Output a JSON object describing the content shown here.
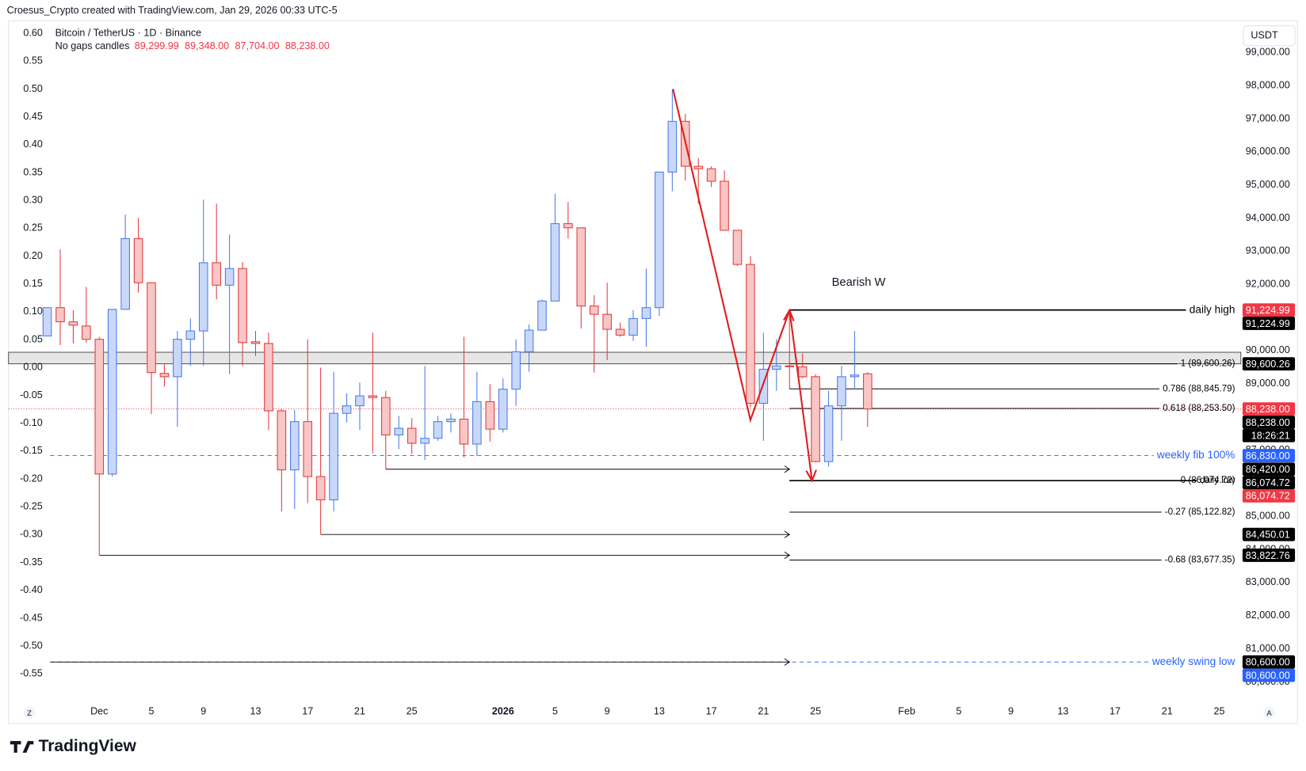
{
  "header": {
    "credit": "Croesus_Crypto created with TradingView.com, Jan 29, 2026 00:33 UTC-5",
    "brand": "TradingView"
  },
  "chart_data": {
    "type": "candlestick",
    "title": "Bitcoin / TetherUS · 1D · Binance",
    "subtitle": "No gaps candles",
    "ohlc_labels": [
      "89,299.99",
      "89,348.00",
      "87,704.00",
      "88,238.00"
    ],
    "currency": "USDT",
    "annotation": "Bearish W",
    "corner_buttons": [
      "Z",
      "A"
    ],
    "up_color": "#4a7be8",
    "up_fill": "#c9d8f8",
    "down_color": "#e23b3b",
    "down_fill": "#f8c6c6",
    "grid": false,
    "categories": [
      null,
      null,
      null,
      null,
      "Dec",
      null,
      null,
      null,
      "5",
      null,
      null,
      null,
      "9",
      null,
      null,
      null,
      "13",
      null,
      null,
      null,
      "17",
      null,
      null,
      null,
      "21",
      null,
      null,
      null,
      "25",
      null,
      null,
      null,
      null,
      null,
      null,
      "2026",
      null,
      null,
      null,
      "5",
      null,
      null,
      null,
      "9",
      null,
      null,
      null,
      "13",
      null,
      null,
      null,
      "17",
      null,
      null,
      null,
      "21",
      null,
      null,
      null,
      "25",
      null,
      null,
      null,
      null,
      null,
      null,
      "Feb",
      null,
      null,
      null,
      "5",
      null,
      null,
      null,
      "9",
      null,
      null,
      null,
      "13",
      null,
      null,
      null,
      "17",
      null,
      null,
      null,
      "21",
      null,
      null,
      null,
      "25",
      null
    ],
    "open": [
      90442,
      91296,
      90869,
      90743,
      90341,
      86274,
      91245,
      93380,
      92049,
      89312,
      89212,
      90341,
      90593,
      92652,
      91974,
      92476,
      90266,
      90216,
      88182,
      86400,
      87856,
      86198,
      85495,
      88107,
      88333,
      88634,
      88584,
      87454,
      87655,
      87203,
      87353,
      87856,
      87931,
      87178,
      88458,
      87630,
      88835,
      89965,
      90618,
      91496,
      93832,
      93706,
      91346,
      91095,
      90643,
      90467,
      90969,
      91296,
      95389,
      96920,
      95564,
      95489,
      95112,
      93631,
      92601,
      88408,
      89437,
      89538,
      89513,
      89212,
      86650,
      88333,
      89212,
      89299.99,
      null,
      null,
      null,
      null,
      null,
      null,
      null,
      null,
      null,
      null,
      null,
      null,
      null,
      null,
      null,
      null,
      null,
      null,
      null,
      null,
      null,
      null,
      null,
      null,
      null,
      null,
      null,
      null
    ],
    "high": [
      91296,
      93053,
      91220,
      91923,
      90417,
      91245,
      94108,
      94008,
      92049,
      89588,
      90593,
      90969,
      94560,
      94434,
      93505,
      92677,
      90593,
      90542,
      88232,
      88207,
      90341,
      89488,
      89362,
      88709,
      89036,
      90542,
      88785,
      88031,
      87956,
      89538,
      88031,
      88107,
      90417,
      89362,
      88985,
      89161,
      90341,
      90793,
      91547,
      94736,
      94485,
      93706,
      91672,
      92049,
      90844,
      91220,
      92476,
      95389,
      97874,
      97146,
      95815,
      95564,
      95439,
      93631,
      92852,
      90542,
      90341,
      91224.99,
      89915,
      89287,
      88785,
      89538,
      90593,
      89348,
      null,
      null,
      null,
      null,
      null,
      null,
      null,
      null,
      null,
      null,
      null,
      null,
      null,
      null,
      null,
      null,
      null,
      null,
      null,
      null,
      null,
      null,
      null,
      null,
      null,
      null,
      null,
      null
    ],
    "low": [
      90442,
      90166,
      90216,
      90241,
      83822.76,
      86198,
      91245,
      91748,
      88082,
      88910,
      87705,
      89538,
      89538,
      91547,
      89287,
      89538,
      89839,
      87604,
      85144,
      85219,
      85395,
      84450.01,
      85144,
      87830,
      87604,
      86902,
      86420,
      87027,
      86876,
      86701,
      87278,
      87529,
      86776,
      86826,
      87253,
      87529,
      88333,
      89362,
      90618,
      91496,
      93380,
      90668,
      89337,
      89714,
      90417,
      90291,
      90115,
      91045,
      94811,
      95137,
      94434,
      94937,
      93631,
      92551,
      88282,
      87278,
      88785,
      88835,
      89161,
      86625,
      86500,
      87278,
      88835,
      87704,
      null,
      null,
      null,
      null,
      null,
      null,
      null,
      null,
      null,
      null,
      null,
      null,
      null,
      null,
      null,
      null,
      null,
      null,
      null,
      null,
      null,
      null,
      null,
      null,
      null,
      null,
      null,
      null
    ],
    "close": [
      91296,
      90869,
      90768,
      90341,
      86274,
      91245,
      93380,
      92049,
      89337,
      89212,
      90341,
      90593,
      92652,
      91974,
      92476,
      90241,
      90216,
      88182,
      86400,
      87856,
      86198,
      85495,
      88107,
      88333,
      88634,
      88584,
      87454,
      87655,
      87203,
      87353,
      87856,
      87931,
      87178,
      88458,
      87630,
      88835,
      89965,
      90618,
      91496,
      93832,
      93706,
      91346,
      91095,
      90643,
      90467,
      90969,
      91296,
      95389,
      96920,
      95564,
      95489,
      95112,
      93631,
      92601,
      88408,
      89437,
      89538,
      89513,
      89212,
      86650,
      88333,
      89212,
      89262,
      88238,
      null,
      null,
      null,
      null,
      null,
      null,
      null,
      null,
      null,
      null,
      null,
      null,
      null,
      null,
      null,
      null,
      null,
      null,
      null,
      null,
      null,
      null,
      null,
      null,
      null,
      null,
      null,
      null
    ],
    "ylim": [
      79620,
      99880
    ],
    "yticks": [
      {
        "value": 99000,
        "label": "99,000.00"
      },
      {
        "value": 98000,
        "label": "98,000.00"
      },
      {
        "value": 97000,
        "label": "97,000.00"
      },
      {
        "value": 96000,
        "label": "96,000.00"
      },
      {
        "value": 95000,
        "label": "95,000.00"
      },
      {
        "value": 94000,
        "label": "94,000.00"
      },
      {
        "value": 93000,
        "label": "93,000.00"
      },
      {
        "value": 92000,
        "label": "92,000.00"
      },
      {
        "value": 91000,
        "label": "91,000.00"
      },
      {
        "value": 90000,
        "label": "90,000.00"
      },
      {
        "value": 89000,
        "label": "89,000.00"
      },
      {
        "value": 88000,
        "label": "88,000.00"
      },
      {
        "value": 87000,
        "label": "87,000.00"
      },
      {
        "value": 86000,
        "label": "86,000.00"
      },
      {
        "value": 85000,
        "label": "85,000.00"
      },
      {
        "value": 84000,
        "label": "84,000.00"
      },
      {
        "value": 83000,
        "label": "83,000.00"
      },
      {
        "value": 82000,
        "label": "82,000.00"
      },
      {
        "value": 81000,
        "label": "81,000.00"
      },
      {
        "value": 80000,
        "label": "80,000.00"
      }
    ],
    "y2lim": [
      -0.587,
      0.618
    ],
    "y2ticks": [
      {
        "value": 0.6,
        "label": "0.60"
      },
      0.55,
      {
        "value": 0.5,
        "label": "0.50"
      },
      0.45,
      {
        "value": 0.4,
        "label": "0.40"
      },
      0.35,
      {
        "value": 0.3,
        "label": "0.30"
      },
      0.25,
      {
        "value": 0.2,
        "label": "0.20"
      },
      0.15,
      {
        "value": 0.1,
        "label": "0.10"
      },
      0.05,
      {
        "value": 0,
        "label": "0.00"
      },
      -0.05,
      {
        "value": -0.1,
        "label": "-0.10"
      },
      -0.15,
      {
        "value": -0.2,
        "label": "-0.20"
      },
      -0.25,
      {
        "value": -0.3,
        "label": "-0.30"
      },
      -0.35,
      {
        "value": -0.4,
        "label": "-0.40"
      },
      -0.45,
      {
        "value": -0.5,
        "label": "-0.50"
      },
      -0.55
    ],
    "zone": [
      89600.26,
      89950
    ],
    "levels": [
      {
        "label": "daily high",
        "value": 91224.99,
        "color": "#000000",
        "dashed": false
      },
      {
        "label": "1 (89,600.26)",
        "value": 89600.26,
        "color": "#000000",
        "dashed": false
      },
      {
        "label": "0.786 (88,845.79)",
        "value": 88845.79,
        "color": "#000000",
        "dashed": false
      },
      {
        "label": "0.618 (88,253.50)",
        "value": 88253.5,
        "color": "#000000",
        "dashed": false
      },
      {
        "label": "weekly fib 100%",
        "value": 86830,
        "color": "#2962ff",
        "dashed": true
      },
      {
        "label": "daily low",
        "value": 86074.72,
        "color": "#000000",
        "dashed": false
      },
      {
        "label": "0 (86,074.72)",
        "value": 86074.72,
        "color": "#000000",
        "dashed": false
      },
      {
        "label": "-0.27 (85,122.82)",
        "value": 85122.82,
        "color": "#000000",
        "dashed": false
      },
      {
        "label": "-0.68 (83,677.35)",
        "value": 83677.35,
        "color": "#000000",
        "dashed": false
      },
      {
        "label": "weekly swing low",
        "value": 80600,
        "color": "#2962ff",
        "dashed": true
      }
    ],
    "price_labels": [
      {
        "label": "91,224.99",
        "value": 91224.99,
        "color": "#f23645"
      },
      {
        "label": "91,224.99",
        "value": 91224.99,
        "color": "#000000"
      },
      {
        "label": "89,600.26",
        "value": 89600.26,
        "color": "#000000"
      },
      {
        "label": "88,238.00",
        "value": 88238,
        "color": "#f23645"
      },
      {
        "label": "88,238.00",
        "value": 88238,
        "color": "#000000"
      },
      {
        "label": "18:26:21",
        "color": "#000000"
      },
      {
        "label": "86,830.00",
        "value": 86830,
        "color": "#2962ff"
      },
      {
        "label": "86,420.00",
        "value": 86420,
        "color": "#000000"
      },
      {
        "label": "86,074.72",
        "value": 86074.72,
        "color": "#000000"
      },
      {
        "label": "86,074.72",
        "value": 86074.72,
        "color": "#f23645"
      },
      {
        "label": "84,450.01",
        "value": 84450.01,
        "color": "#000000"
      },
      {
        "label": "83,822.76",
        "value": 83822.76,
        "color": "#000000"
      },
      {
        "label": "80,600.00",
        "value": 80600,
        "color": "#000000"
      },
      {
        "label": "80,600.00",
        "value": 80600,
        "color": "#2962ff"
      }
    ]
  }
}
